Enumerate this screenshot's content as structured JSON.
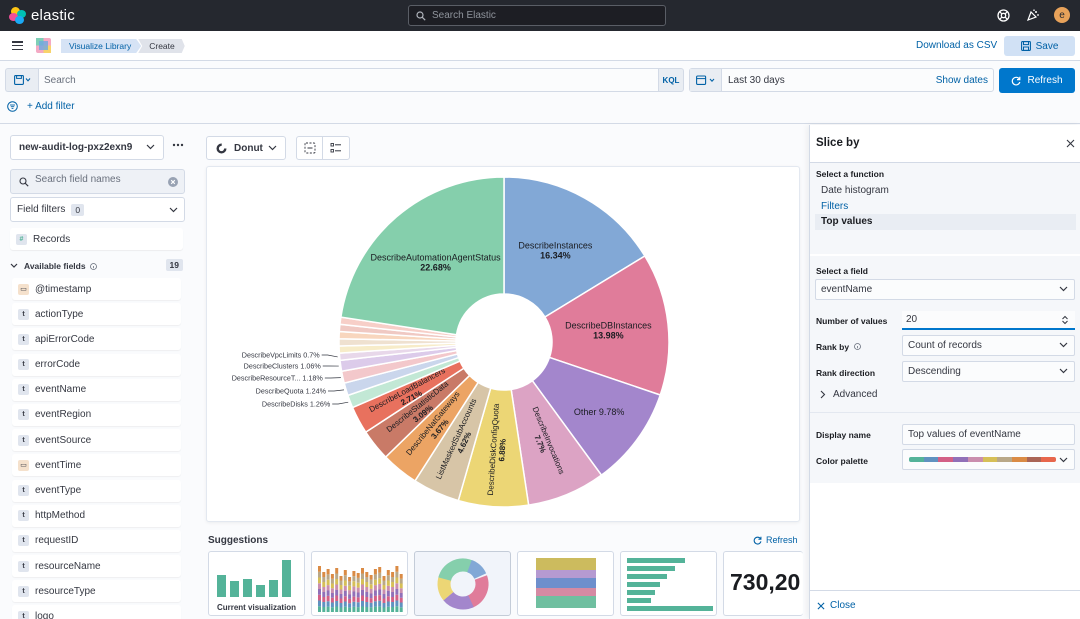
{
  "header": {
    "brand": "elastic",
    "search_placeholder": "Search Elastic",
    "avatar_initial": "e"
  },
  "breadcrumbs": {
    "library": "Visualize Library",
    "current": "Create"
  },
  "actions": {
    "download_csv": "Download as CSV",
    "save": "Save"
  },
  "query": {
    "search_placeholder": "Search",
    "language": "KQL",
    "date_range": "Last 30 days",
    "show_dates": "Show dates",
    "refresh": "Refresh",
    "add_filter": "+ Add filter"
  },
  "sidebar": {
    "index_pattern": "new-audit-log-pxz2exn9",
    "field_search_placeholder": "Search field names",
    "field_filters_label": "Field filters",
    "field_filters_count": "0",
    "records_label": "Records",
    "available_label": "Available fields",
    "available_count": "19",
    "fields": [
      {
        "name": "@timestamp",
        "type": "date"
      },
      {
        "name": "actionType",
        "type": "t"
      },
      {
        "name": "apiErrorCode",
        "type": "t"
      },
      {
        "name": "errorCode",
        "type": "t"
      },
      {
        "name": "eventName",
        "type": "t"
      },
      {
        "name": "eventRegion",
        "type": "t"
      },
      {
        "name": "eventSource",
        "type": "t"
      },
      {
        "name": "eventTime",
        "type": "date"
      },
      {
        "name": "eventType",
        "type": "t"
      },
      {
        "name": "httpMethod",
        "type": "t"
      },
      {
        "name": "requestID",
        "type": "t"
      },
      {
        "name": "resourceName",
        "type": "t"
      },
      {
        "name": "resourceType",
        "type": "t"
      },
      {
        "name": "logo",
        "type": "t"
      }
    ]
  },
  "workspace": {
    "chart_type_label": "Donut",
    "suggestions_title": "Suggestions",
    "suggestions_refresh": "Refresh",
    "current_viz_caption": "Current visualization",
    "metric_suggestion": "730,20"
  },
  "chart_data": {
    "type": "pie",
    "donut": true,
    "slices": [
      {
        "label": "DescribeInstances",
        "value": 16.34,
        "display": "16.34%",
        "color": "#82a8d6"
      },
      {
        "label": "DescribeDBInstances",
        "value": 13.98,
        "display": "13.98%",
        "color": "#e07c9a"
      },
      {
        "label": "Other",
        "value": 9.78,
        "display": "9.78%",
        "color": "#a386cc"
      },
      {
        "label": "DescribeInvocations",
        "value": 7.7,
        "display": "7.7%",
        "color": "#dca3c4"
      },
      {
        "label": "DescribeDiskConfigQuota",
        "value": 6.88,
        "display": "6.88%",
        "color": "#ecd675"
      },
      {
        "label": "ListMaskedSubAccounts",
        "value": 4.62,
        "display": "4.62%",
        "color": "#d7c5a7"
      },
      {
        "label": "DescribeNatGateways",
        "value": 3.67,
        "display": "3.67%",
        "color": "#eca464"
      },
      {
        "label": "DescribeStatisticData",
        "value": 3.09,
        "display": "3.09%",
        "color": "#c97a67"
      },
      {
        "label": "DescribeLoadBalancers",
        "value": 2.71,
        "display": "2.71%",
        "color": "#e8715e"
      },
      {
        "label": "DescribeDisks",
        "value": 1.26,
        "display": "1.26%",
        "color": "#c2e8d5"
      },
      {
        "label": "DescribeQuota",
        "value": 1.24,
        "display": "1.24%",
        "color": "#cad6ec"
      },
      {
        "label": "DescribeResourceT...",
        "value": 1.18,
        "display": "1.18%",
        "color": "#f3c8cb"
      },
      {
        "label": "DescribeClusters",
        "value": 1.06,
        "display": "1.06%",
        "color": "#dccbea"
      },
      {
        "label": "DescribeVpcLimits",
        "value": 0.7,
        "display": "0.7%",
        "color": "#e8d8ea"
      },
      {
        "label": "",
        "value": 0.7,
        "display": "",
        "color": "#f7ecc9"
      },
      {
        "label": "",
        "value": 0.7,
        "display": "",
        "color": "#efe1d0"
      },
      {
        "label": "",
        "value": 0.7,
        "display": "",
        "color": "#f8d6be"
      },
      {
        "label": "",
        "value": 0.7,
        "display": "",
        "color": "#f0c9c3"
      },
      {
        "label": "",
        "value": 0.7,
        "display": "",
        "color": "#f7cfc8"
      },
      {
        "label": "DescribeAutomationAgentStatus",
        "value": 22.68,
        "display": "22.68%",
        "color": "#85cfac"
      }
    ]
  },
  "flyout": {
    "title": "Slice by",
    "function_label": "Select a function",
    "functions": [
      "Date histogram",
      "Filters",
      "Top values"
    ],
    "field_label": "Select a field",
    "field_value": "eventName",
    "num_values_label": "Number of values",
    "num_values": "20",
    "rank_by_label": "Rank by",
    "rank_by_value": "Count of records",
    "rank_dir_label": "Rank direction",
    "rank_dir_value": "Descending",
    "advanced_label": "Advanced",
    "display_name_label": "Display name",
    "display_name_value": "Top values of eventName",
    "color_palette_label": "Color palette",
    "palette_colors": [
      "#54b399",
      "#6092c0",
      "#d36086",
      "#9170b8",
      "#ca8eae",
      "#d6bf57",
      "#b9a888",
      "#da8b45",
      "#aa6556",
      "#e7664c"
    ],
    "close": "Close"
  }
}
